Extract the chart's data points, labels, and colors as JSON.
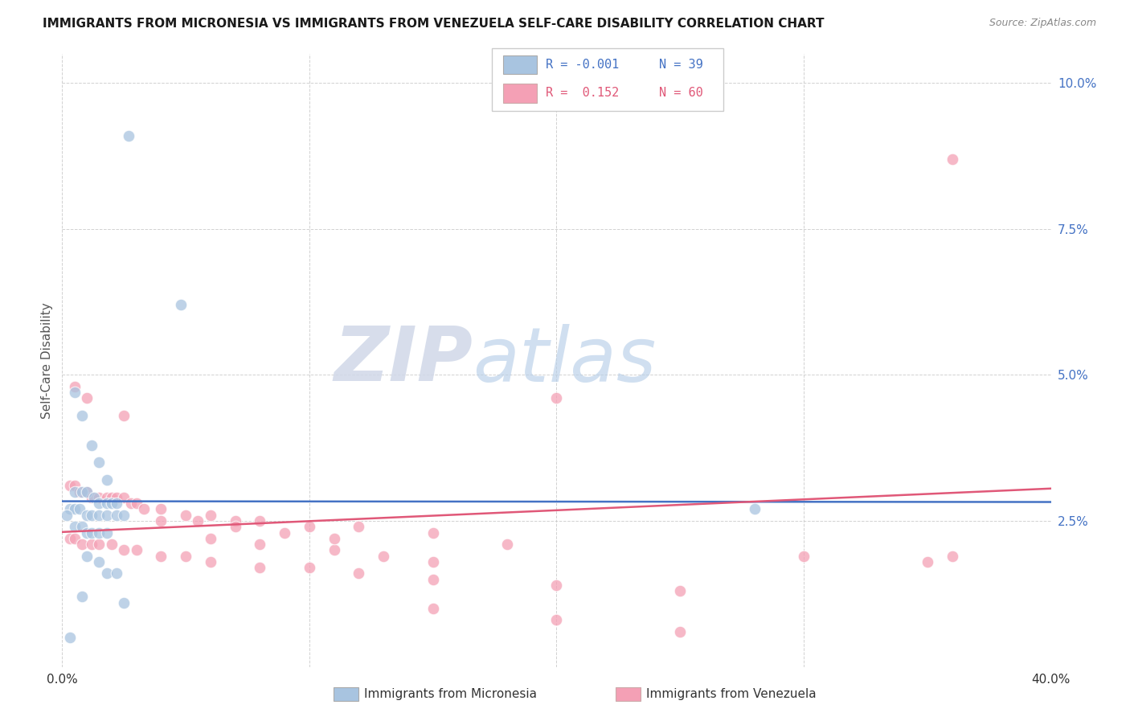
{
  "title": "IMMIGRANTS FROM MICRONESIA VS IMMIGRANTS FROM VENEZUELA SELF-CARE DISABILITY CORRELATION CHART",
  "source": "Source: ZipAtlas.com",
  "ylabel": "Self-Care Disability",
  "xlim": [
    0.0,
    0.4
  ],
  "ylim": [
    0.0,
    0.105
  ],
  "blue_color": "#a8c4e0",
  "pink_color": "#f4a0b5",
  "blue_line_color": "#4472c4",
  "pink_line_color": "#e05878",
  "watermark_zip": "ZIP",
  "watermark_atlas": "atlas",
  "legend_blue_r": "R = -0.001",
  "legend_blue_n": "N = 39",
  "legend_pink_r": "R =  0.152",
  "legend_pink_n": "N = 60",
  "micronesia_x": [
    0.027,
    0.048,
    0.005,
    0.008,
    0.012,
    0.015,
    0.018,
    0.005,
    0.008,
    0.01,
    0.013,
    0.015,
    0.018,
    0.02,
    0.022,
    0.003,
    0.005,
    0.007,
    0.01,
    0.012,
    0.015,
    0.018,
    0.022,
    0.025,
    0.005,
    0.008,
    0.01,
    0.012,
    0.015,
    0.018,
    0.01,
    0.015,
    0.018,
    0.022,
    0.002,
    0.008,
    0.28,
    0.003,
    0.025
  ],
  "micronesia_y": [
    0.091,
    0.062,
    0.047,
    0.043,
    0.038,
    0.035,
    0.032,
    0.03,
    0.03,
    0.03,
    0.029,
    0.028,
    0.028,
    0.028,
    0.028,
    0.027,
    0.027,
    0.027,
    0.026,
    0.026,
    0.026,
    0.026,
    0.026,
    0.026,
    0.024,
    0.024,
    0.023,
    0.023,
    0.023,
    0.023,
    0.019,
    0.018,
    0.016,
    0.016,
    0.026,
    0.012,
    0.027,
    0.005,
    0.011
  ],
  "venezuela_x": [
    0.36,
    0.005,
    0.01,
    0.025,
    0.2,
    0.003,
    0.005,
    0.007,
    0.01,
    0.012,
    0.015,
    0.018,
    0.02,
    0.022,
    0.025,
    0.028,
    0.03,
    0.033,
    0.04,
    0.05,
    0.06,
    0.07,
    0.08,
    0.1,
    0.12,
    0.15,
    0.003,
    0.005,
    0.008,
    0.012,
    0.015,
    0.02,
    0.025,
    0.03,
    0.04,
    0.05,
    0.06,
    0.08,
    0.1,
    0.12,
    0.15,
    0.2,
    0.25,
    0.3,
    0.35,
    0.36,
    0.15,
    0.2,
    0.25,
    0.06,
    0.08,
    0.11,
    0.13,
    0.15,
    0.04,
    0.055,
    0.07,
    0.09,
    0.11,
    0.18
  ],
  "venezuela_y": [
    0.087,
    0.048,
    0.046,
    0.043,
    0.046,
    0.031,
    0.031,
    0.03,
    0.03,
    0.029,
    0.029,
    0.029,
    0.029,
    0.029,
    0.029,
    0.028,
    0.028,
    0.027,
    0.027,
    0.026,
    0.026,
    0.025,
    0.025,
    0.024,
    0.024,
    0.023,
    0.022,
    0.022,
    0.021,
    0.021,
    0.021,
    0.021,
    0.02,
    0.02,
    0.019,
    0.019,
    0.018,
    0.017,
    0.017,
    0.016,
    0.015,
    0.014,
    0.013,
    0.019,
    0.018,
    0.019,
    0.01,
    0.008,
    0.006,
    0.022,
    0.021,
    0.02,
    0.019,
    0.018,
    0.025,
    0.025,
    0.024,
    0.023,
    0.022,
    0.021
  ]
}
